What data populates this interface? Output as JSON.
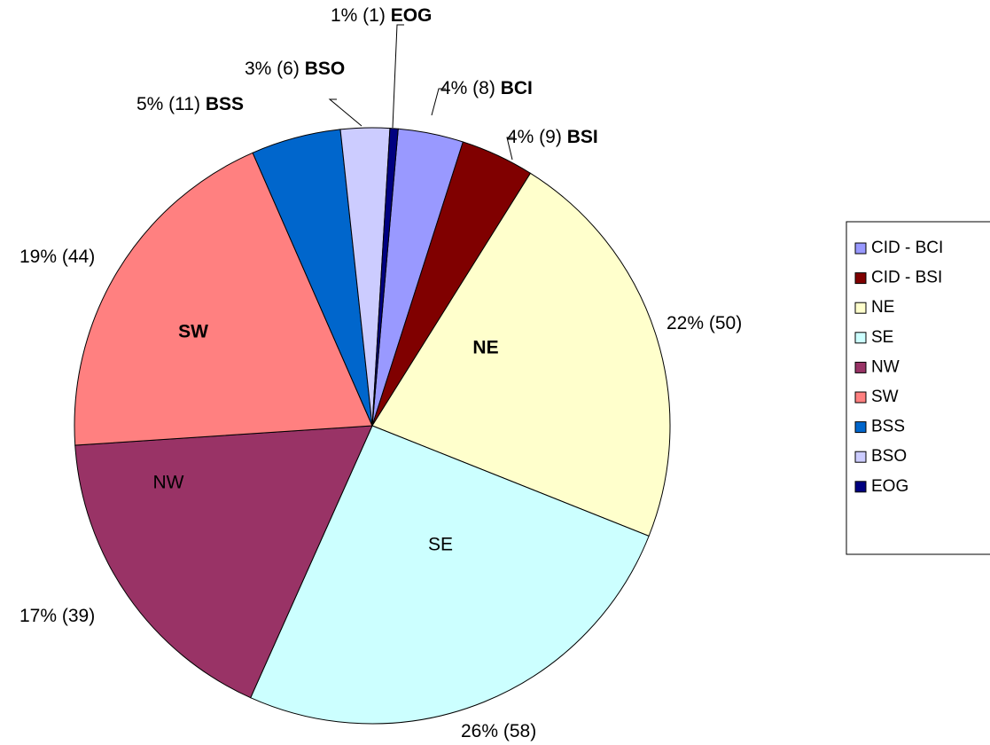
{
  "chart_data": {
    "type": "pie",
    "categories": [
      "CID - BCI",
      "CID - BSI",
      "NE",
      "SE",
      "NW",
      "SW",
      "BSS",
      "BSO",
      "EOG"
    ],
    "values": [
      8,
      9,
      50,
      58,
      39,
      44,
      11,
      6,
      1
    ],
    "value_labels": [
      "4% (8)",
      "4% (9)",
      "22% (50)",
      "26% (58)",
      "17% (39)",
      "19% (44)",
      "5% (11)",
      "3% (6)",
      "1% (1)"
    ],
    "slice_labels": [
      "BCI",
      "BSI",
      "NE",
      "SE",
      "NW",
      "SW",
      "BSS",
      "BSO",
      "EOG"
    ],
    "slice_label_bold": [
      true,
      true,
      true,
      false,
      false,
      true,
      true,
      true,
      true
    ],
    "colors": [
      "#9999ff",
      "#800000",
      "#ffffcc",
      "#ccffff",
      "#993366",
      "#ff8080",
      "#0066cc",
      "#ccccff",
      "#000080"
    ],
    "legend": "right"
  }
}
